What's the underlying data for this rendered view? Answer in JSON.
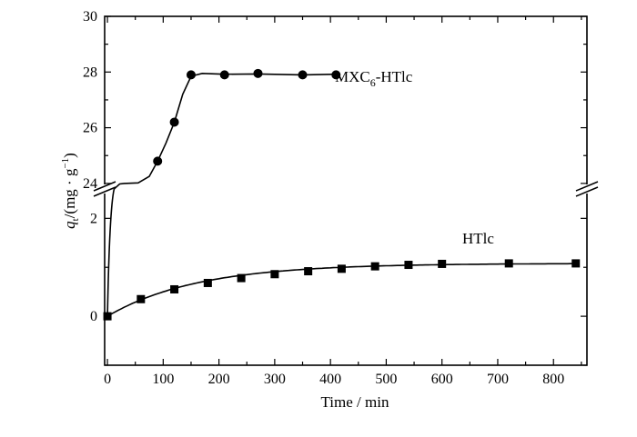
{
  "chart_data": {
    "type": "scatter",
    "title": "",
    "xlabel": "Time / min",
    "ylabel": "q_t/(mg·g⁻¹)",
    "ylabel_parts": {
      "q": "q",
      "sub": "t",
      "main": "/(mg · g",
      "sup": "−1",
      "close": ")"
    },
    "xlim": [
      -5,
      860
    ],
    "x_ticks": [
      0,
      100,
      200,
      300,
      400,
      500,
      600,
      700,
      800
    ],
    "axis_break": true,
    "y_lower": {
      "ylim": [
        -1,
        2.6
      ],
      "ticks": [
        0,
        2
      ]
    },
    "y_upper": {
      "ylim": [
        23.8,
        30
      ],
      "ticks": [
        24,
        26,
        28,
        30
      ]
    },
    "grid": false,
    "series": [
      {
        "name": "MXC6-HTlc",
        "label_main": "MXC",
        "label_sub": "6",
        "label_rest": "-HTlc",
        "marker": "circle",
        "color": "#000000",
        "x": [
          90,
          120,
          150,
          210,
          270,
          350,
          410
        ],
        "y": [
          24.8,
          26.2,
          27.9,
          27.9,
          27.95,
          27.9,
          27.9
        ],
        "start_point": [
          0,
          0
        ]
      },
      {
        "name": "HTlc",
        "marker": "square",
        "color": "#000000",
        "x": [
          0,
          60,
          120,
          180,
          240,
          300,
          360,
          420,
          480,
          540,
          600,
          720,
          840
        ],
        "y": [
          0.0,
          0.35,
          0.55,
          0.68,
          0.78,
          0.86,
          0.92,
          0.97,
          1.02,
          1.05,
          1.07,
          1.08,
          1.08
        ]
      }
    ]
  }
}
